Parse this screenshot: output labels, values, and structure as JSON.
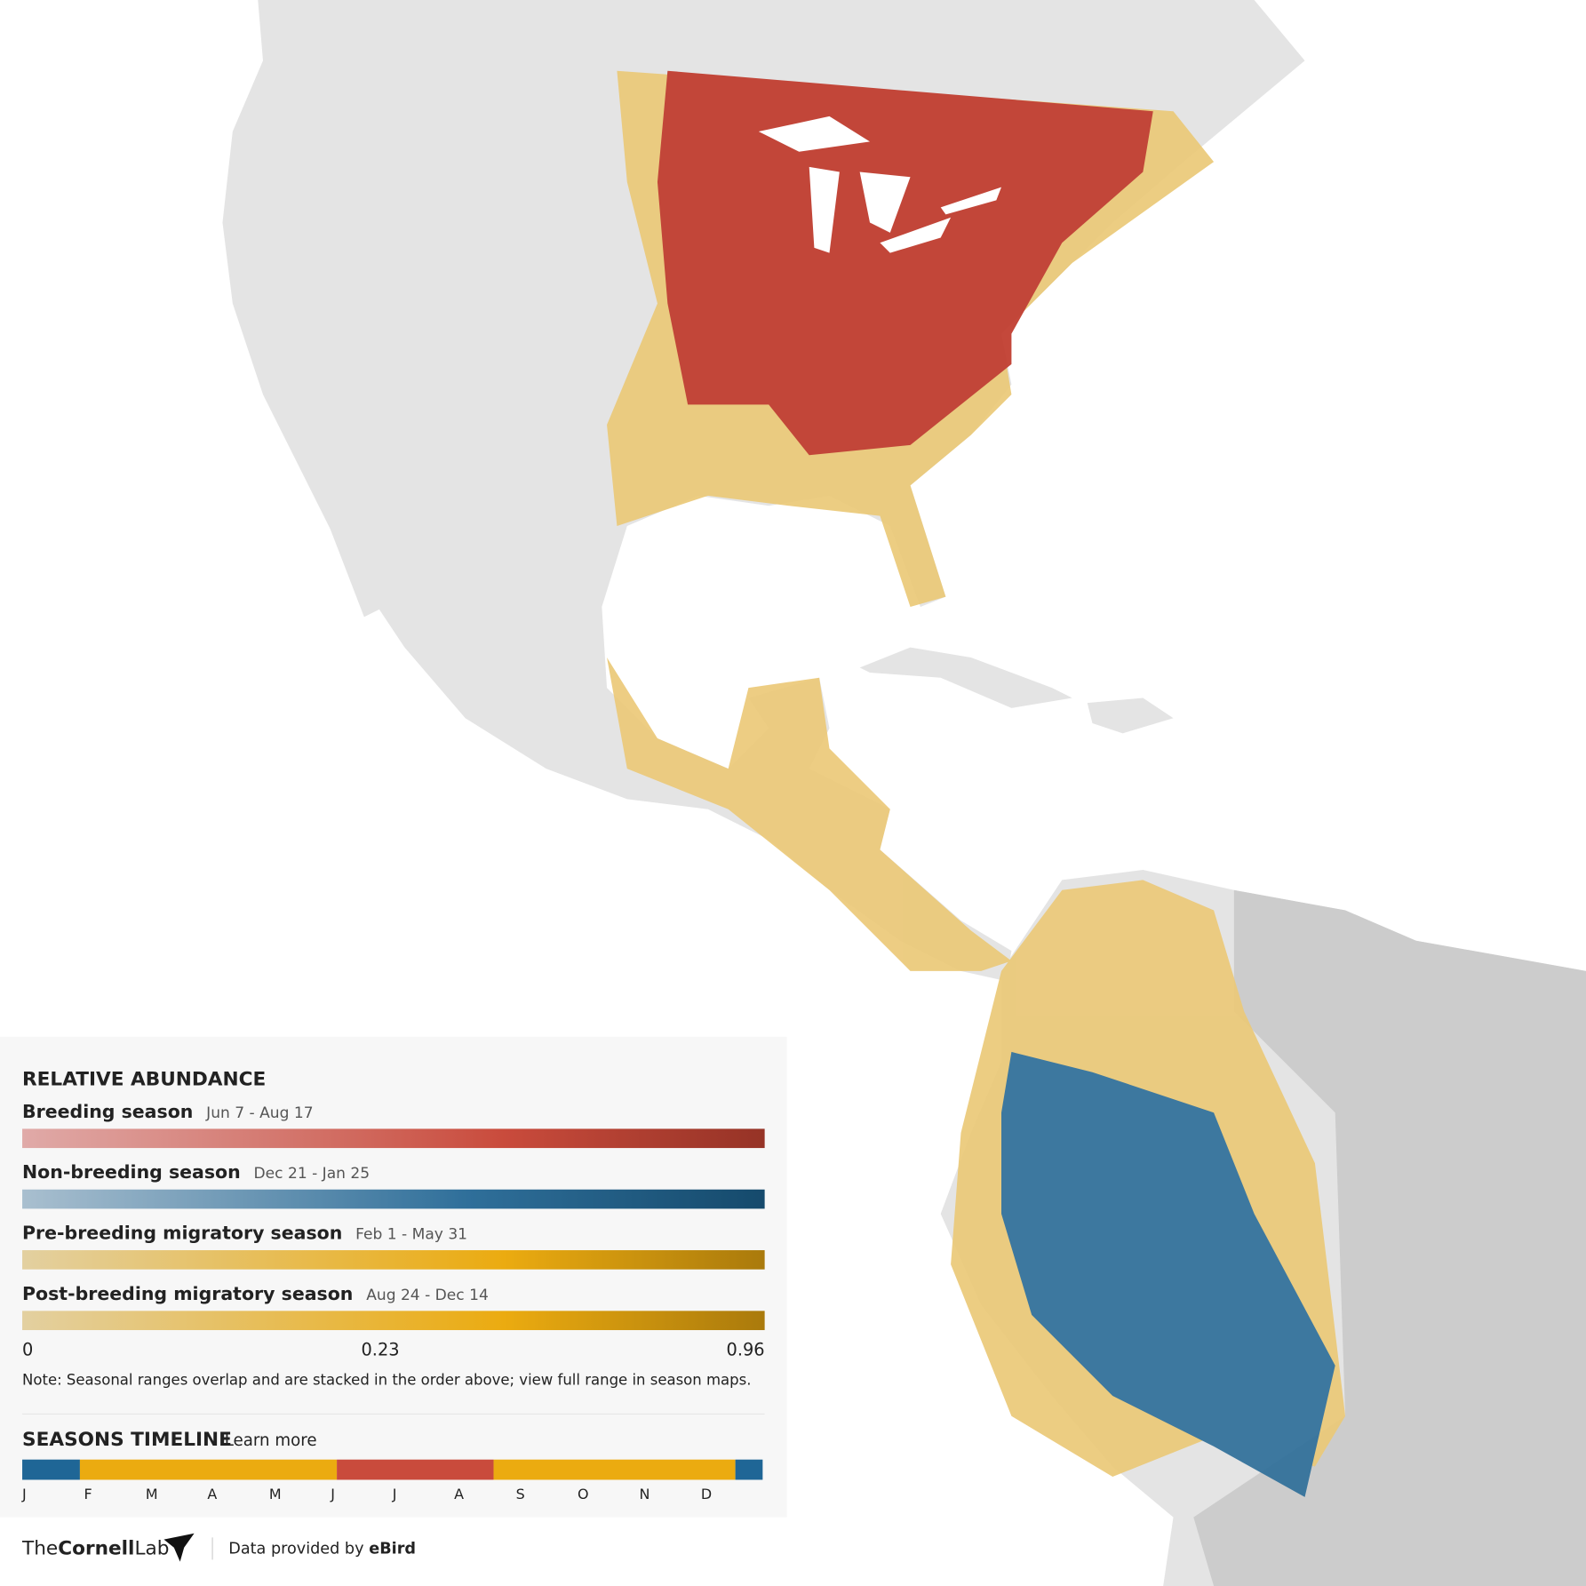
{
  "legend": {
    "title": "RELATIVE ABUNDANCE",
    "seasons": [
      {
        "name": "Breeding season",
        "dates": "Jun 7 - Aug 17"
      },
      {
        "name": "Non-breeding season",
        "dates": "Dec 21 - Jan 25"
      },
      {
        "name": "Pre-breeding migratory season",
        "dates": "Feb 1 - May 31"
      },
      {
        "name": "Post-breeding migratory season",
        "dates": "Aug 24 - Dec 14"
      }
    ],
    "scale": [
      0,
      0.23,
      0.96
    ],
    "note": "Note: Seasonal ranges overlap and are stacked in the order above; view full range in season maps."
  },
  "timeline": {
    "title": "SEASONS TIMELINE",
    "link": "Learn more",
    "months": [
      "J",
      "F",
      "M",
      "A",
      "M",
      "J",
      "J",
      "A",
      "S",
      "O",
      "N",
      "D"
    ]
  },
  "footer": {
    "logo_prefix": "The",
    "logo_name": "Cornell",
    "logo_suffix": "Lab",
    "credit": "Data provided by",
    "source": "eBird"
  }
}
